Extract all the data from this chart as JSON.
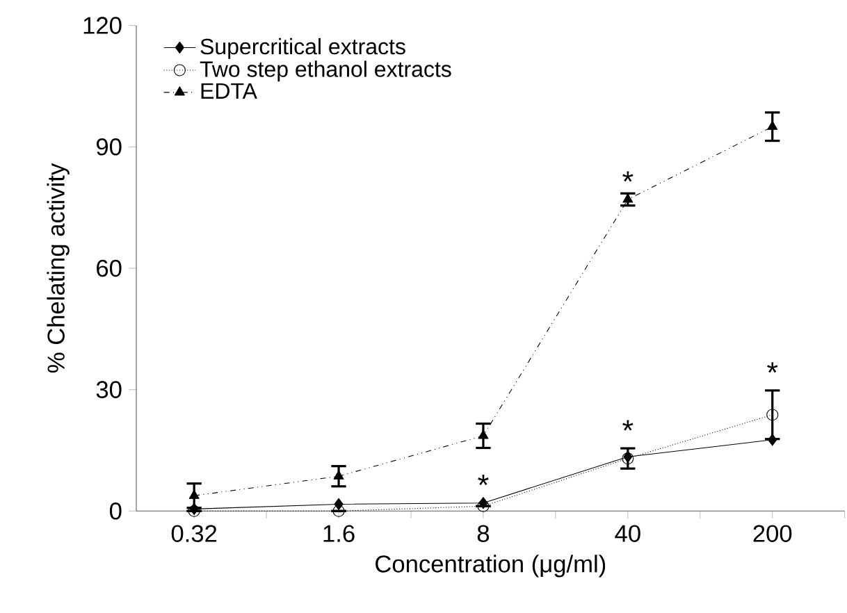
{
  "chart_data": {
    "type": "line",
    "xlabel": "Concentration (μg/ml)",
    "ylabel": "% Chelating activity",
    "categories": [
      "0.32",
      "1.6",
      "8",
      "40",
      "200"
    ],
    "series": [
      {
        "name": "Supercritical extracts",
        "color": "#000000",
        "marker": "diamond",
        "line_style": "solid",
        "values": [
          0.5,
          1.7,
          2,
          13.4,
          17.6
        ]
      },
      {
        "name": "Two step ethanol extracts",
        "color": "#000000",
        "marker": "circle",
        "line_style": "dotted",
        "values": [
          0,
          0,
          1.2,
          13,
          23.8
        ],
        "errors": [
          null,
          null,
          null,
          2.5,
          6
        ]
      },
      {
        "name": "EDTA",
        "color": "#000000",
        "marker": "triangle",
        "line_style": "dashed",
        "values": [
          3.8,
          8.6,
          18.6,
          77,
          95
        ],
        "errors": [
          3,
          2.5,
          3,
          1.5,
          3.5
        ]
      }
    ],
    "ylim": [
      0,
      120
    ],
    "yticks": [
      0,
      30,
      60,
      90,
      120
    ],
    "legend": "top left",
    "annotations": [
      {
        "text": "*",
        "x": "8",
        "y": 2
      },
      {
        "text": "*",
        "x": "40",
        "y": 15.5
      },
      {
        "text": "*",
        "x": "40",
        "y": 77
      },
      {
        "text": "*",
        "x": "200",
        "y": 29.8
      }
    ]
  }
}
